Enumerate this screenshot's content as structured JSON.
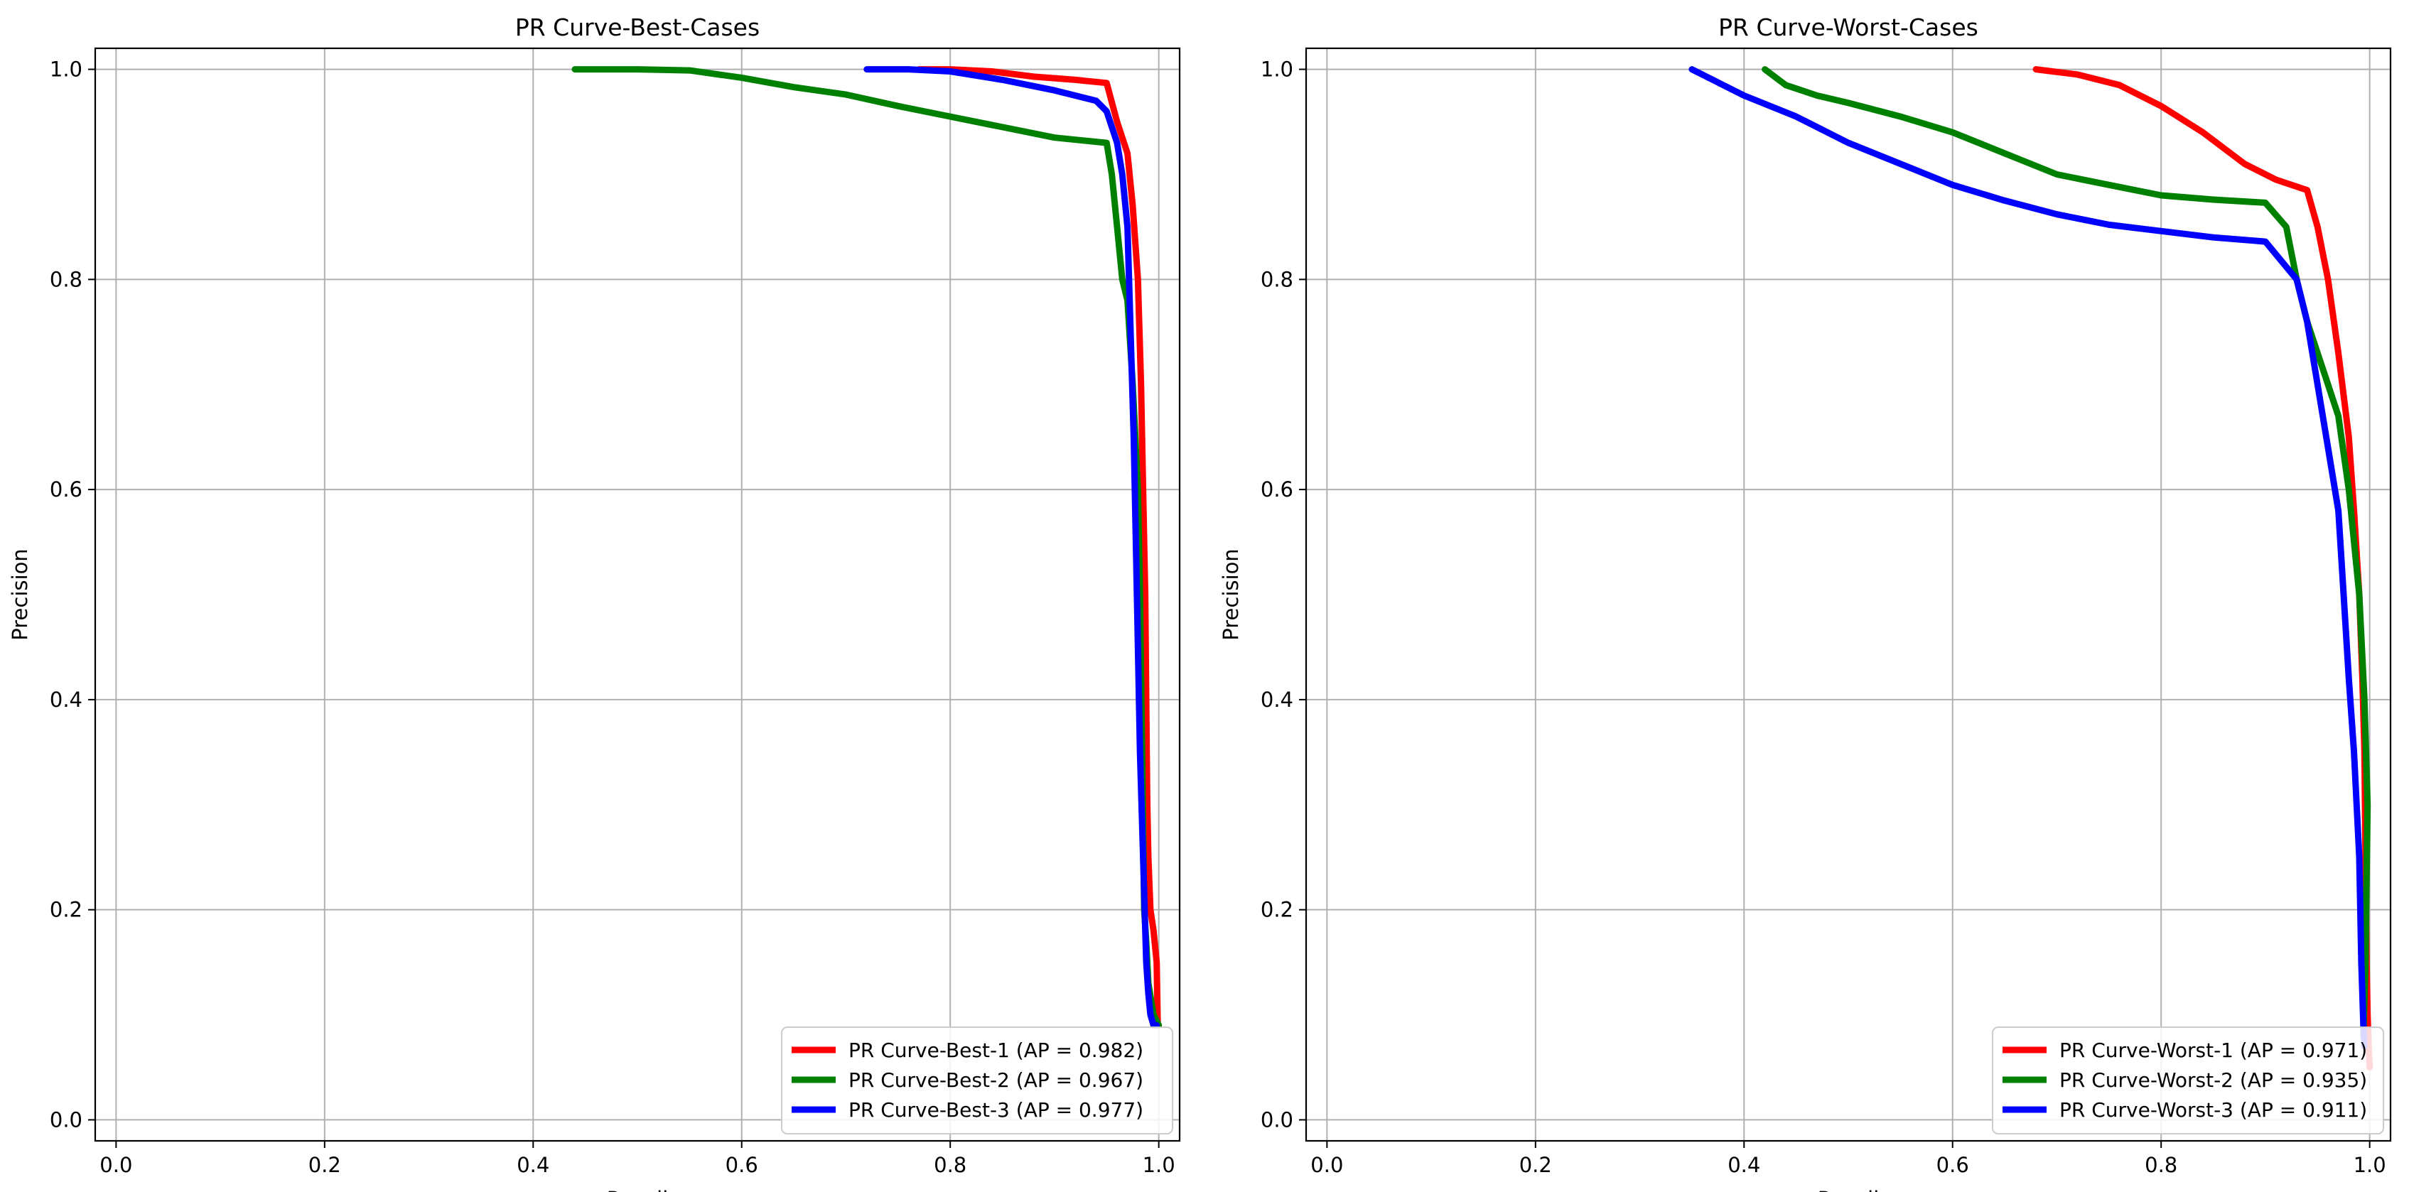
{
  "chart_data": [
    {
      "type": "line",
      "title": "PR Curve-Best-Cases",
      "xlabel": "Recall",
      "ylabel": "Precision",
      "xlim": [
        -0.02,
        1.02
      ],
      "ylim": [
        -0.02,
        1.02
      ],
      "xticks": [
        0.0,
        0.2,
        0.4,
        0.6,
        0.8,
        1.0
      ],
      "yticks": [
        0.0,
        0.2,
        0.4,
        0.6,
        0.8,
        1.0
      ],
      "tick_labels": [
        "0.0",
        "0.2",
        "0.4",
        "0.6",
        "0.8",
        "1.0"
      ],
      "grid": true,
      "legend_position": "lower-right",
      "series": [
        {
          "name": "PR Curve-Best-1 (AP = 0.982)",
          "color": "#ff0000",
          "x": [
            0.77,
            0.8,
            0.84,
            0.88,
            0.92,
            0.95,
            0.96,
            0.97,
            0.975,
            0.98,
            0.983,
            0.985,
            0.987,
            0.988,
            0.989,
            0.99,
            0.992,
            0.995,
            0.998,
            0.999
          ],
          "y": [
            1.0,
            1.0,
            0.998,
            0.993,
            0.99,
            0.987,
            0.95,
            0.92,
            0.87,
            0.8,
            0.7,
            0.6,
            0.5,
            0.4,
            0.3,
            0.25,
            0.2,
            0.18,
            0.15,
            0.09
          ]
        },
        {
          "name": "PR Curve-Best-2 (AP = 0.967)",
          "color": "#008000",
          "x": [
            0.44,
            0.5,
            0.55,
            0.6,
            0.65,
            0.7,
            0.75,
            0.8,
            0.85,
            0.9,
            0.95,
            0.955,
            0.96,
            0.965,
            0.97,
            0.975,
            0.98,
            0.982,
            0.984,
            0.986,
            0.988,
            0.99,
            0.995,
            1.0
          ],
          "y": [
            1.0,
            1.0,
            0.999,
            0.992,
            0.983,
            0.976,
            0.965,
            0.955,
            0.945,
            0.935,
            0.93,
            0.9,
            0.85,
            0.8,
            0.78,
            0.7,
            0.6,
            0.5,
            0.35,
            0.2,
            0.17,
            0.13,
            0.1,
            0.09
          ]
        },
        {
          "name": "PR Curve-Best-3 (AP = 0.977)",
          "color": "#0000ff",
          "x": [
            0.72,
            0.76,
            0.8,
            0.85,
            0.9,
            0.94,
            0.95,
            0.96,
            0.965,
            0.97,
            0.973,
            0.976,
            0.978,
            0.98,
            0.982,
            0.985,
            0.988,
            0.99,
            0.992,
            0.995,
            0.998
          ],
          "y": [
            1.0,
            1.0,
            0.998,
            0.99,
            0.98,
            0.97,
            0.96,
            0.93,
            0.9,
            0.85,
            0.75,
            0.65,
            0.55,
            0.45,
            0.35,
            0.25,
            0.15,
            0.12,
            0.1,
            0.09,
            0.09
          ]
        }
      ]
    },
    {
      "type": "line",
      "title": "PR Curve-Worst-Cases",
      "xlabel": "Recall",
      "ylabel": "Precision",
      "xlim": [
        -0.02,
        1.02
      ],
      "ylim": [
        -0.02,
        1.02
      ],
      "xticks": [
        0.0,
        0.2,
        0.4,
        0.6,
        0.8,
        1.0
      ],
      "yticks": [
        0.0,
        0.2,
        0.4,
        0.6,
        0.8,
        1.0
      ],
      "tick_labels": [
        "0.0",
        "0.2",
        "0.4",
        "0.6",
        "0.8",
        "1.0"
      ],
      "grid": true,
      "legend_position": "lower-right",
      "series": [
        {
          "name": "PR Curve-Worst-1 (AP = 0.971)",
          "color": "#ff0000",
          "x": [
            0.68,
            0.72,
            0.76,
            0.8,
            0.84,
            0.88,
            0.91,
            0.94,
            0.95,
            0.96,
            0.97,
            0.98,
            0.985,
            0.99,
            0.993,
            0.995,
            0.996,
            0.997,
            0.998,
            0.999,
            1.0
          ],
          "y": [
            1.0,
            0.995,
            0.985,
            0.965,
            0.94,
            0.91,
            0.895,
            0.885,
            0.85,
            0.8,
            0.73,
            0.65,
            0.58,
            0.5,
            0.42,
            0.35,
            0.25,
            0.15,
            0.1,
            0.07,
            0.05
          ]
        },
        {
          "name": "PR Curve-Worst-2 (AP = 0.935)",
          "color": "#008000",
          "x": [
            0.42,
            0.44,
            0.47,
            0.5,
            0.55,
            0.6,
            0.65,
            0.7,
            0.75,
            0.8,
            0.85,
            0.9,
            0.92,
            0.93,
            0.94,
            0.95,
            0.96,
            0.97,
            0.98,
            0.99,
            0.995,
            0.998,
            0.996,
            0.994
          ],
          "y": [
            1.0,
            0.985,
            0.975,
            0.968,
            0.955,
            0.94,
            0.92,
            0.9,
            0.89,
            0.88,
            0.876,
            0.873,
            0.85,
            0.8,
            0.76,
            0.73,
            0.7,
            0.67,
            0.6,
            0.5,
            0.4,
            0.3,
            0.15,
            0.08
          ]
        },
        {
          "name": "PR Curve-Worst-3 (AP = 0.911)",
          "color": "#0000ff",
          "x": [
            0.35,
            0.37,
            0.4,
            0.45,
            0.5,
            0.55,
            0.6,
            0.65,
            0.7,
            0.75,
            0.8,
            0.85,
            0.9,
            0.93,
            0.94,
            0.95,
            0.96,
            0.97,
            0.975,
            0.98,
            0.985,
            0.99,
            0.992,
            0.994,
            0.995
          ],
          "y": [
            1.0,
            0.99,
            0.975,
            0.955,
            0.93,
            0.91,
            0.89,
            0.875,
            0.862,
            0.852,
            0.846,
            0.84,
            0.836,
            0.8,
            0.76,
            0.7,
            0.64,
            0.58,
            0.5,
            0.42,
            0.35,
            0.25,
            0.15,
            0.09,
            0.07
          ]
        }
      ]
    }
  ]
}
